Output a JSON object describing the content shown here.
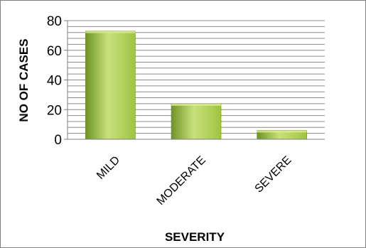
{
  "chart_data": {
    "type": "bar",
    "categories": [
      "MILD",
      "MODERATE",
      "SEVERE"
    ],
    "values": [
      73,
      24,
      6
    ],
    "title": "",
    "xlabel": "SEVERITY",
    "ylabel": "NO OF CASES",
    "ylim": [
      0,
      80
    ],
    "yticks": [
      0,
      20,
      40,
      60,
      80
    ],
    "yticks_labels": [
      "0",
      "20",
      "40",
      "60",
      "80"
    ],
    "minor_gridlines": true,
    "gridline_step": 4,
    "legend": "none",
    "bar_color_top": "#c9e07a",
    "bar_color_mid": "#9dc443",
    "bar_color_bottom": "#6d9423"
  }
}
